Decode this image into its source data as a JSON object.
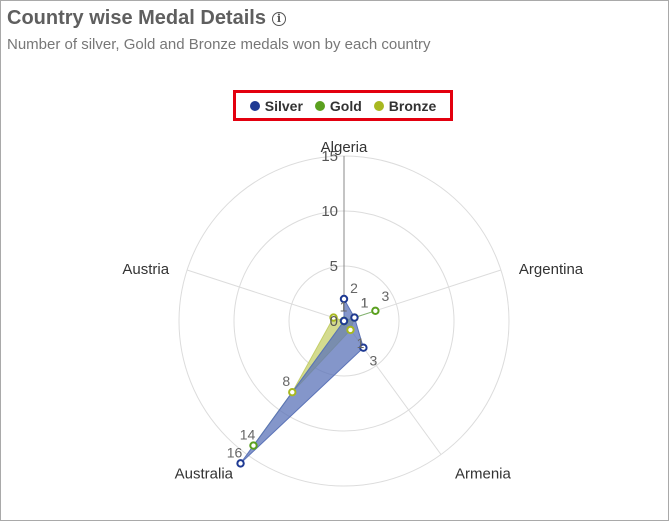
{
  "header": {
    "title": "Country wise Medal Details",
    "subtitle": "Number of silver, Gold and Bronze medals won by each country",
    "info_icon": "info-icon"
  },
  "chart_data": {
    "type": "radar",
    "title": "Country wise Medal Details",
    "subtitle": "Number of silver, Gold and Bronze medals won by each country",
    "categories": [
      "Algeria",
      "Argentina",
      "Armenia",
      "Australia",
      "Austria"
    ],
    "ylim": [
      0,
      15
    ],
    "ticks": [
      0,
      5,
      10,
      15
    ],
    "legend_position": "top",
    "series": [
      {
        "name": "Silver",
        "color": "#1f3a93",
        "fill": "#5b73b8",
        "values": [
          2,
          1,
          3,
          16,
          0
        ]
      },
      {
        "name": "Gold",
        "color": "#5aa01e",
        "fill": "#7fb26b",
        "values": [
          0,
          3,
          0,
          14,
          0
        ]
      },
      {
        "name": "Bronze",
        "color": "#a8b820",
        "fill": "#c5cf6a",
        "values": [
          0,
          1,
          1,
          8,
          1
        ]
      }
    ]
  }
}
